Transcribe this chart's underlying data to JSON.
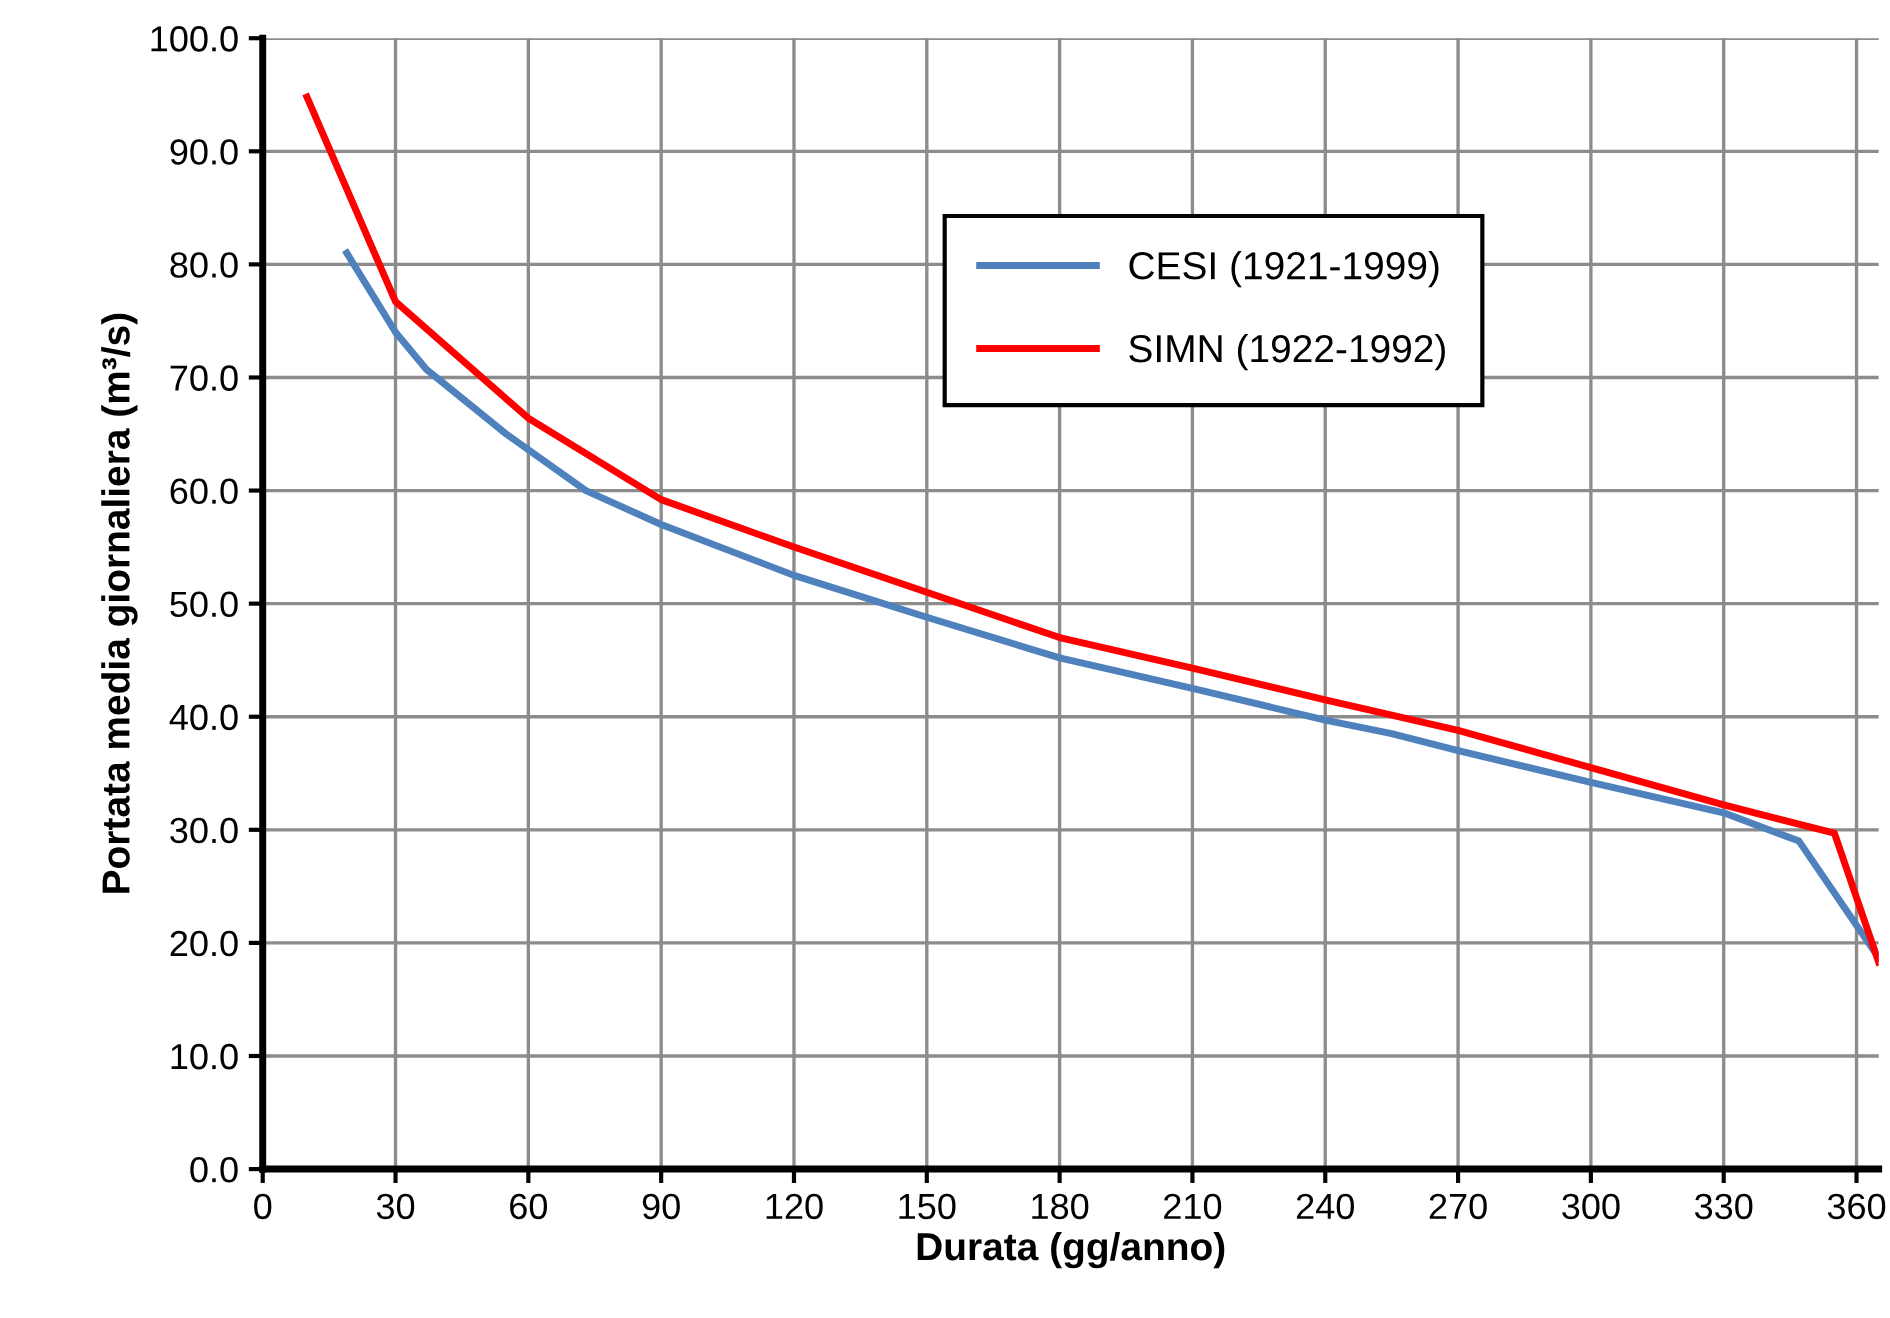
{
  "chart_data": {
    "type": "line",
    "xlabel": "Durata (gg/anno)",
    "ylabel": "Portata media giornaliera (m³/s)",
    "xlim": [
      0,
      365
    ],
    "xticks": [
      0,
      30,
      60,
      90,
      120,
      150,
      180,
      210,
      240,
      270,
      300,
      330,
      360
    ],
    "ylim": [
      0,
      100
    ],
    "yticks": [
      {
        "value": 0,
        "label": "0.0"
      },
      {
        "value": 10,
        "label": "10.0"
      },
      {
        "value": 20,
        "label": "20.0"
      },
      {
        "value": 30,
        "label": "30.0"
      },
      {
        "value": 40,
        "label": "40.0"
      },
      {
        "value": 50,
        "label": "50.0"
      },
      {
        "value": 60,
        "label": "60.0"
      },
      {
        "value": 70,
        "label": "70.0"
      },
      {
        "value": 80,
        "label": "80.0"
      },
      {
        "value": 90,
        "label": "90.0"
      },
      {
        "value": 100,
        "label": "100.0"
      }
    ],
    "grid": true,
    "legend": "top right",
    "marker": "none",
    "line_style": "solid",
    "series": [
      {
        "name": "CESI (1921-1999)",
        "color": "#4f81bd",
        "x": [
          19,
          30,
          37,
          55,
          73,
          90,
          120,
          150,
          180,
          210,
          240,
          255,
          270,
          300,
          330,
          347,
          365
        ],
        "values": [
          81,
          74,
          70.7,
          65,
          60,
          57,
          52.5,
          48.8,
          45.2,
          42.5,
          39.7,
          38.5,
          37,
          34.2,
          31.5,
          29,
          18.7
        ]
      },
      {
        "name": "SIMN (1922-1992)",
        "color": "#ff0000",
        "x": [
          10,
          30,
          60,
          90,
          120,
          150,
          180,
          210,
          240,
          270,
          300,
          330,
          355,
          365
        ],
        "values": [
          94.8,
          76.7,
          66.4,
          59.2,
          55,
          51,
          47,
          44.3,
          41.5,
          38.8,
          35.5,
          32.2,
          29.7,
          18.3
        ]
      }
    ]
  }
}
